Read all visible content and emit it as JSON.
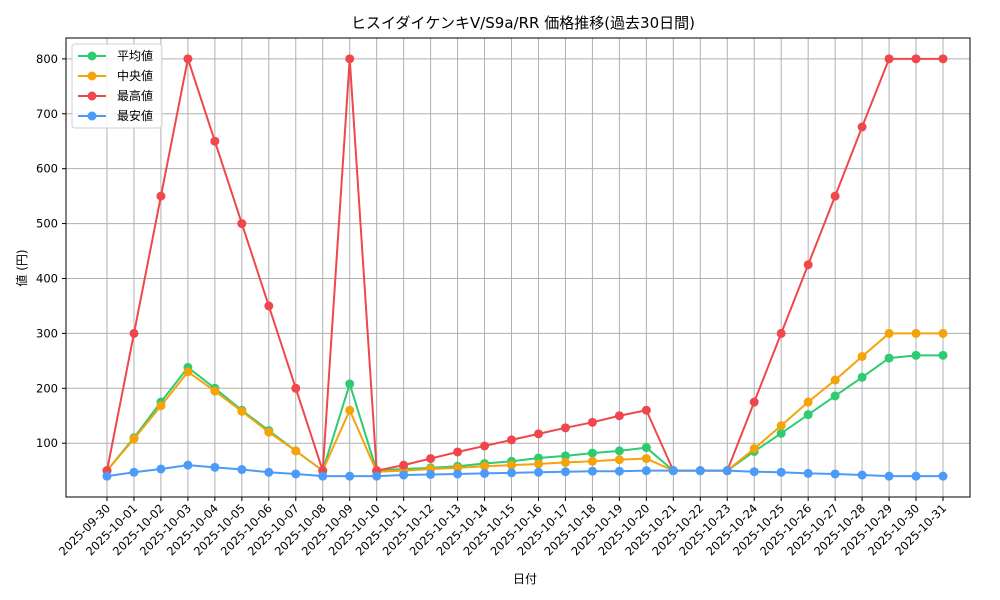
{
  "chart_data": {
    "type": "line",
    "title": "ヒスイダイケンキV/S9a/RR 価格推移(過去30日間)",
    "xlabel": "日付",
    "ylabel": "値 (円)",
    "ylim": [
      2,
      838
    ],
    "yticks": [
      100,
      200,
      300,
      400,
      500,
      600,
      700,
      800
    ],
    "grid": true,
    "legend_position": "upper left",
    "x": [
      "2025-09-30",
      "2025-10-01",
      "2025-10-02",
      "2025-10-03",
      "2025-10-04",
      "2025-10-05",
      "2025-10-06",
      "2025-10-07",
      "2025-10-08",
      "2025-10-09",
      "2025-10-10",
      "2025-10-11",
      "2025-10-12",
      "2025-10-13",
      "2025-10-14",
      "2025-10-15",
      "2025-10-16",
      "2025-10-17",
      "2025-10-18",
      "2025-10-19",
      "2025-10-20",
      "2025-10-21",
      "2025-10-22",
      "2025-10-23",
      "2025-10-24",
      "2025-10-25",
      "2025-10-26",
      "2025-10-27",
      "2025-10-28",
      "2025-10-29",
      "2025-10-30",
      "2025-10-31"
    ],
    "series": [
      {
        "name": "平均値",
        "color": "#2ecc71",
        "values": [
          50,
          110,
          175,
          238,
          200,
          160,
          123,
          86,
          50,
          208,
          50,
          53,
          55,
          58,
          63,
          67,
          73,
          77,
          82,
          86,
          92,
          50,
          50,
          50,
          85,
          118,
          152,
          186,
          220,
          255,
          260,
          260
        ]
      },
      {
        "name": "中央値",
        "color": "#f5a30a",
        "values": [
          50,
          108,
          168,
          230,
          195,
          158,
          120,
          86,
          50,
          160,
          48,
          50,
          53,
          55,
          58,
          60,
          62,
          65,
          67,
          70,
          72,
          50,
          50,
          50,
          90,
          132,
          175,
          215,
          258,
          300,
          300,
          300
        ]
      },
      {
        "name": "最高値",
        "color": "#f0474d",
        "values": [
          50,
          300,
          550,
          800,
          650,
          500,
          350,
          200,
          50,
          800,
          50,
          60,
          72,
          84,
          95,
          106,
          117,
          128,
          138,
          150,
          160,
          50,
          50,
          50,
          175,
          300,
          425,
          550,
          676,
          800,
          800,
          800
        ]
      },
      {
        "name": "最安値",
        "color": "#4b9bf8",
        "values": [
          40,
          47,
          53,
          60,
          56,
          52,
          47,
          44,
          40,
          40,
          40,
          42,
          43,
          44,
          45,
          46,
          47,
          48,
          49,
          49,
          50,
          50,
          50,
          50,
          48,
          47,
          45,
          44,
          42,
          40,
          40,
          40
        ]
      }
    ]
  }
}
